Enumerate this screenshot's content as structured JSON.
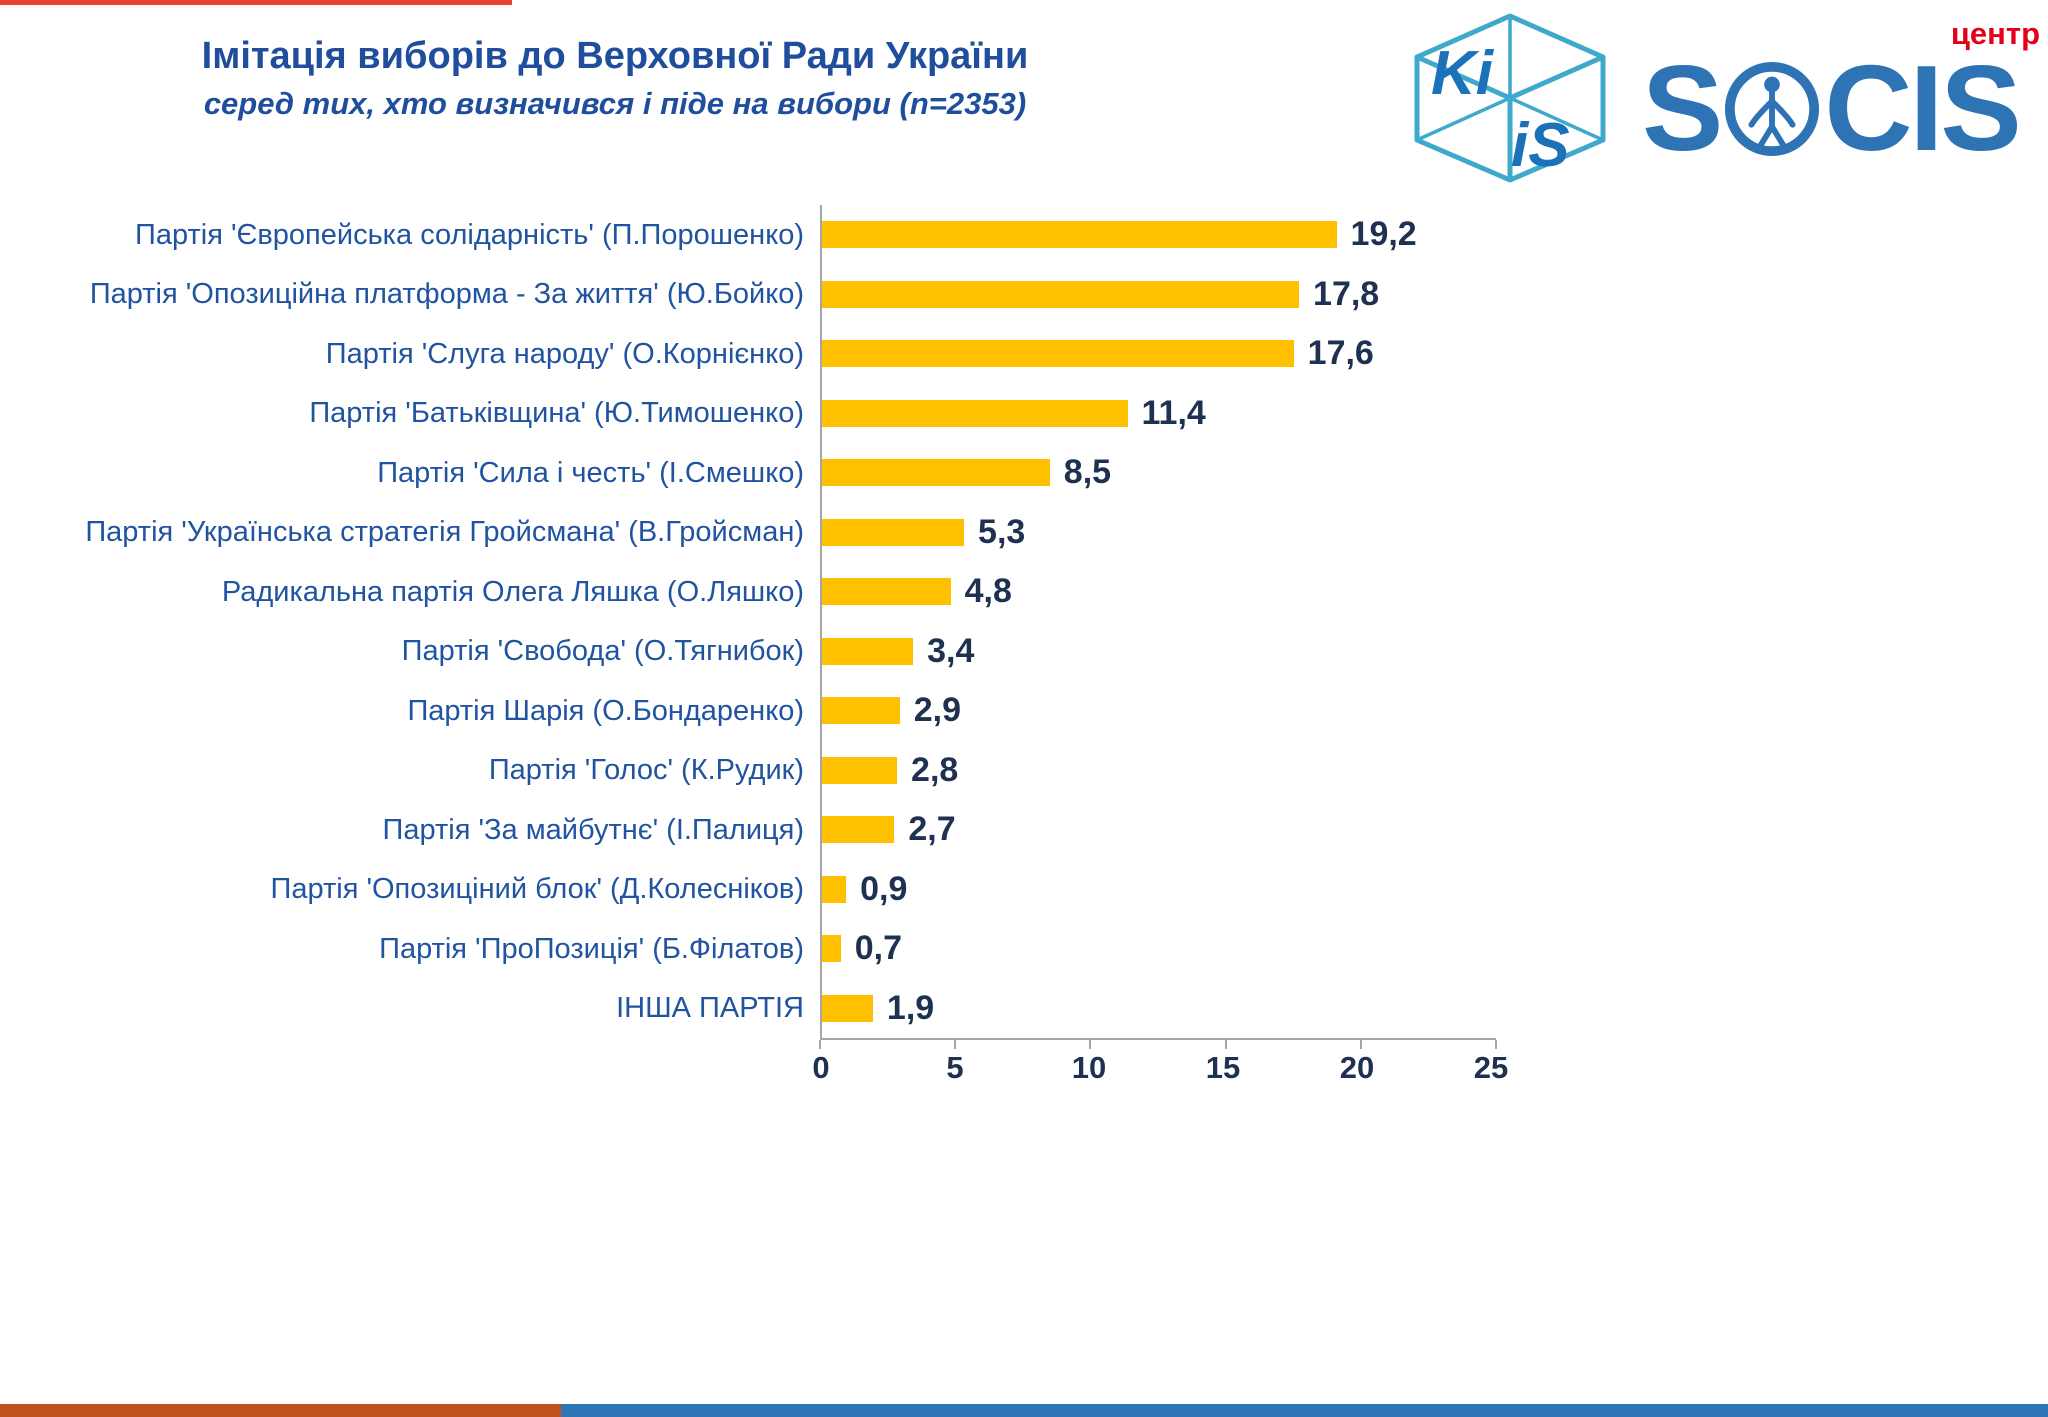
{
  "colors": {
    "title_blue": "#1F4E9C",
    "label_blue": "#2053A0",
    "value_navy": "#1F3150",
    "bar_yellow": "#FFC000",
    "axis_gray": "#A6A6A6",
    "red_line": "#E8432D",
    "strip_orange": "#C0531D",
    "strip_blue": "#2E75B6",
    "socis_blue": "#2E74B5",
    "kiis_teal": "#3FA9CB",
    "kiis_text_blue": "#1B72B8",
    "logo_red": "#E3001B"
  },
  "header": {
    "title": "Імітація виборів до Верховної Ради України",
    "subtitle": "серед тих, хто визначився і піде на вибори (n=2353)"
  },
  "logos": {
    "kiis": {
      "part1": "Ki",
      "part2": "iS"
    },
    "socis": {
      "prefix": "S",
      "suffix": "CIS",
      "tagline": "центр"
    }
  },
  "chart_data": {
    "type": "bar",
    "orientation": "horizontal",
    "title": "Імітація виборів до Верховної Ради України",
    "subtitle": "серед тих, хто визначився і піде на вибори (n=2353)",
    "xlabel": "",
    "ylabel": "",
    "xlim": [
      0,
      25
    ],
    "x_ticks": [
      0,
      5,
      10,
      15,
      20,
      25
    ],
    "grid": false,
    "legend": false,
    "bar_color": "#FFC000",
    "categories": [
      "Партія 'Європейська солідарність' (П.Порошенко)",
      "Партія 'Опозиційна платформа - За життя' (Ю.Бойко)",
      "Партія 'Слуга народу' (О.Корнієнко)",
      "Партія 'Батьківщина' (Ю.Тимошенко)",
      "Партія 'Сила і честь' (І.Смешко)",
      "Партія 'Українська стратегія Гройсмана' (В.Гройсман)",
      "Радикальна партія Олега Ляшка (О.Ляшко)",
      "Партія 'Свобода' (О.Тягнибок)",
      "Партія Шарія (О.Бондаренко)",
      "Партія 'Голос' (К.Рудик)",
      "Партія 'За майбутнє' (І.Палиця)",
      "Партія 'Опозиціний блок' (Д.Колесніков)",
      "Партія 'ПроПозиція' (Б.Філатов)",
      "ІНША ПАРТІЯ"
    ],
    "values": [
      19.2,
      17.8,
      17.6,
      11.4,
      8.5,
      5.3,
      4.8,
      3.4,
      2.9,
      2.8,
      2.7,
      0.9,
      0.7,
      1.9
    ],
    "value_labels": [
      "19,2",
      "17,8",
      "17,6",
      "11,4",
      "8,5",
      "5,3",
      "4,8",
      "3,4",
      "2,9",
      "2,8",
      "2,7",
      "0,9",
      "0,7",
      "1,9"
    ]
  }
}
